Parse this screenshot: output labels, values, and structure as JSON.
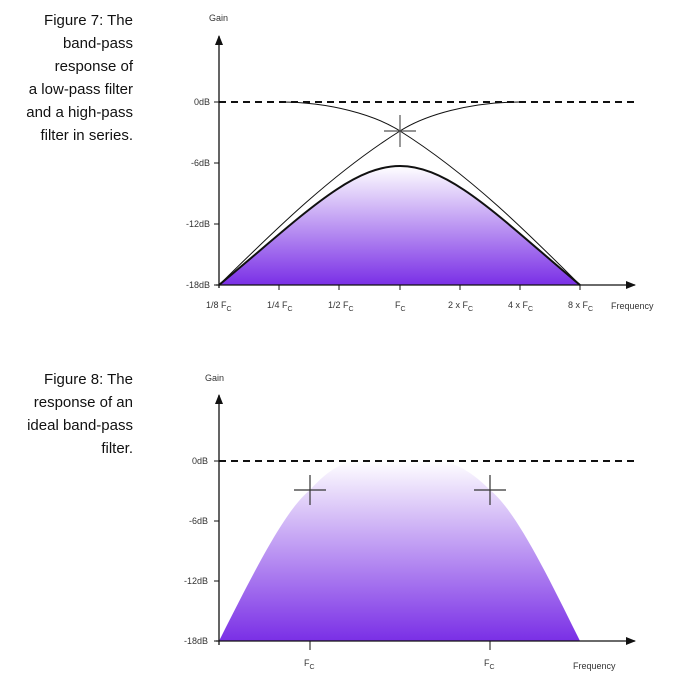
{
  "figure7": {
    "caption_lines": [
      "Figure 7: The",
      "band-pass",
      "response of",
      "a low-pass filter",
      "and a high-pass",
      "filter in series."
    ],
    "y_axis_label": "Gain",
    "x_axis_label": "Frequency",
    "y_ticks": [
      "0dB",
      "-6dB",
      "-12dB",
      "-18dB"
    ],
    "x_ticks": [
      {
        "main": "1/8 F",
        "sub": "C"
      },
      {
        "main": "1/4 F",
        "sub": "C"
      },
      {
        "main": "1/2 F",
        "sub": "C"
      },
      {
        "main": "F",
        "sub": "C"
      },
      {
        "main": "2 x F",
        "sub": "C"
      },
      {
        "main": "4 x F",
        "sub": "C"
      },
      {
        "main": "8 x F",
        "sub": "C"
      }
    ]
  },
  "figure8": {
    "caption_lines": [
      "Figure 8: The",
      "response of an",
      "ideal band-pass",
      "filter."
    ],
    "y_axis_label": "Gain",
    "x_axis_label": "Frequency",
    "y_ticks": [
      "0dB",
      "-6dB",
      "-12dB",
      "-18dB"
    ],
    "x_ticks": [
      {
        "main": "F",
        "sub": "C"
      },
      {
        "main": "F",
        "sub": "C"
      }
    ]
  },
  "colors": {
    "fill_top": "#ffffff",
    "fill_bottom": "#7a2fe6",
    "axis": "#111111",
    "reference_line": "#111111"
  }
}
